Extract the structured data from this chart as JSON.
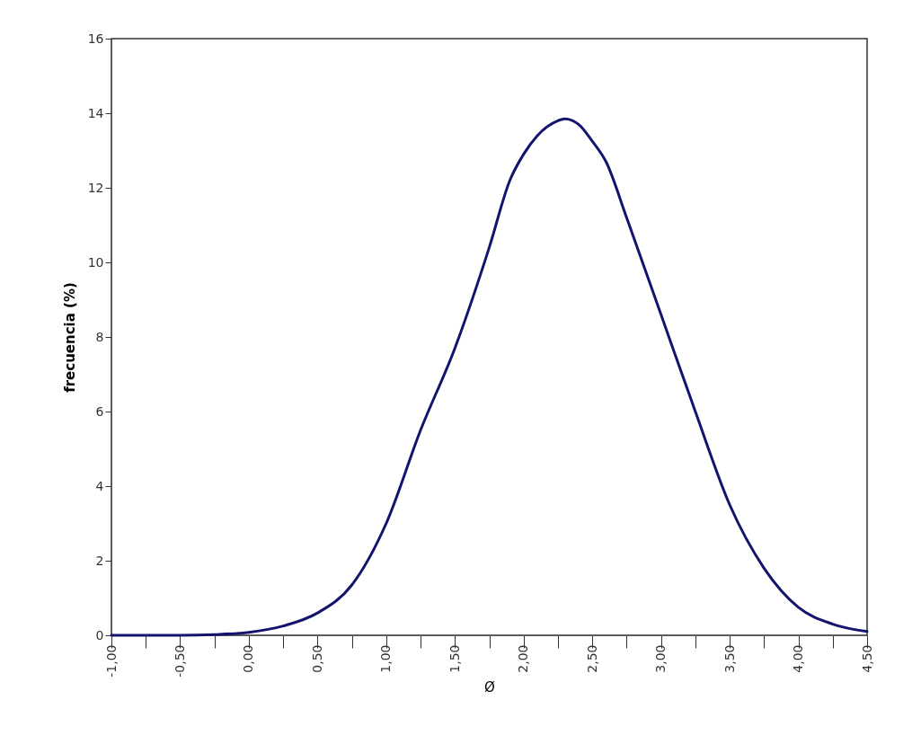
{
  "chart_data": {
    "type": "line",
    "xlabel": "Ø",
    "ylabel": "frecuencia (%)",
    "x": [
      -1,
      -0.75,
      -0.5,
      -0.25,
      0,
      0.25,
      0.5,
      0.75,
      1,
      1.25,
      1.5,
      1.75,
      1.9,
      2,
      2.1,
      2.25,
      2.3,
      2.4,
      2.5,
      2.6,
      2.75,
      3,
      3.25,
      3.5,
      3.75,
      4,
      4.25,
      4.5
    ],
    "series": [
      {
        "color": "#14146e",
        "values": [
          0,
          0,
          0,
          0.02,
          0.08,
          0.25,
          0.6,
          1.35,
          3.0,
          5.5,
          7.7,
          10.4,
          12.2,
          12.9,
          13.4,
          13.8,
          13.85,
          13.7,
          13.25,
          12.7,
          11.2,
          8.6,
          6.0,
          3.5,
          1.8,
          0.75,
          0.3,
          0.1
        ]
      }
    ],
    "xlim": [
      -1,
      4.5
    ],
    "ylim": [
      0,
      16
    ],
    "xticks": [
      {
        "value": -1,
        "label": "-1,00"
      },
      {
        "value": -0.75,
        "label": null
      },
      {
        "value": -0.5,
        "label": "-0,50"
      },
      {
        "value": -0.25,
        "label": null
      },
      {
        "value": 0,
        "label": "0,00"
      },
      {
        "value": 0.25,
        "label": null
      },
      {
        "value": 0.5,
        "label": "0,50"
      },
      {
        "value": 0.75,
        "label": null
      },
      {
        "value": 1,
        "label": "1,00"
      },
      {
        "value": 1.25,
        "label": null
      },
      {
        "value": 1.5,
        "label": "1,50"
      },
      {
        "value": 1.75,
        "label": null
      },
      {
        "value": 2,
        "label": "2,00"
      },
      {
        "value": 2.25,
        "label": null
      },
      {
        "value": 2.5,
        "label": "2,50"
      },
      {
        "value": 2.75,
        "label": null
      },
      {
        "value": 3,
        "label": "3,00"
      },
      {
        "value": 3.25,
        "label": null
      },
      {
        "value": 3.5,
        "label": "3,50"
      },
      {
        "value": 3.75,
        "label": null
      },
      {
        "value": 4,
        "label": "4,00"
      },
      {
        "value": 4.25,
        "label": null
      },
      {
        "value": 4.5,
        "label": "4,50"
      }
    ],
    "yticks": [
      0,
      2,
      4,
      6,
      8,
      10,
      12,
      14,
      16
    ],
    "grid": false,
    "marker": "none",
    "line_style": "solid"
  }
}
